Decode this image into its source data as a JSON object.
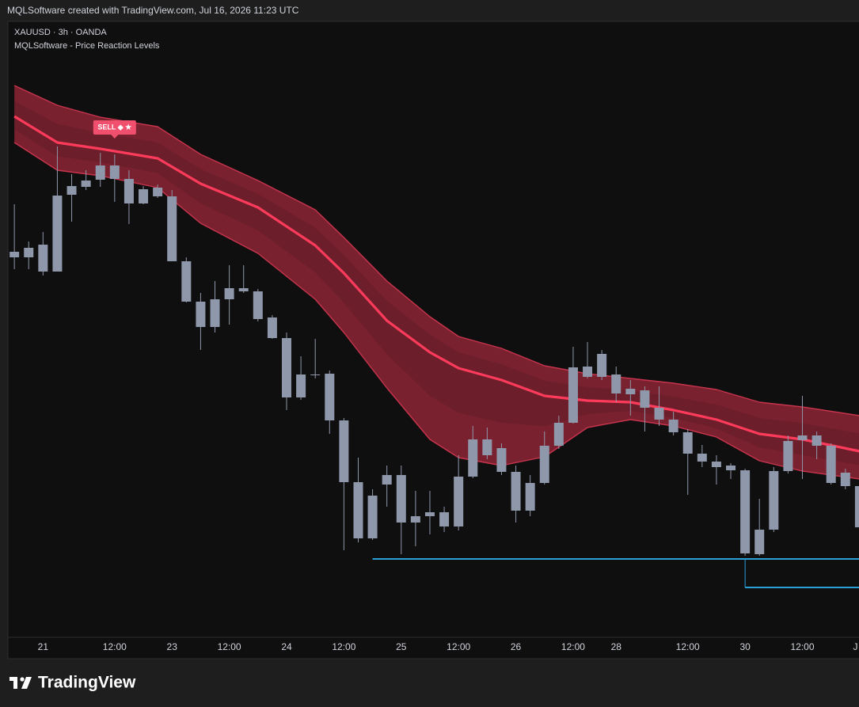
{
  "header": {
    "title": "MQLSoftware created with TradingView.com, Jul 16, 2026 11:23 UTC"
  },
  "footer": {
    "brand": "TradingView"
  },
  "chart_data": {
    "type": "candlestick",
    "symbol": "XAUUSD · 3h · OANDA",
    "indicator": "MQLSoftware - Price Reaction Levels",
    "color": "#8f97aa",
    "xlim": [
      -0.45,
      58.95
    ],
    "ylim": [
      0,
      778
    ],
    "xticks": [
      {
        "value": 2,
        "label": "21"
      },
      {
        "value": 7,
        "label": "12:00"
      },
      {
        "value": 11,
        "label": "23"
      },
      {
        "value": 15,
        "label": "12:00"
      },
      {
        "value": 19,
        "label": "24"
      },
      {
        "value": 23,
        "label": "12:00"
      },
      {
        "value": 27,
        "label": "25"
      },
      {
        "value": 31,
        "label": "12:00"
      },
      {
        "value": 35,
        "label": "26"
      },
      {
        "value": 39,
        "label": "12:00"
      },
      {
        "value": 42,
        "label": "28"
      },
      {
        "value": 47,
        "label": "12:00"
      },
      {
        "value": 51,
        "label": "30"
      },
      {
        "value": 55,
        "label": "12:00"
      },
      {
        "value": 58.7,
        "label": "J"
      }
    ],
    "candles": {
      "open": [
        480,
        480,
        496,
        462,
        559,
        569,
        578,
        596,
        579,
        548,
        568,
        557,
        475,
        424,
        392,
        427,
        441,
        437,
        404,
        378,
        303,
        332,
        333,
        274,
        196,
        125,
        193,
        205,
        145,
        153,
        158,
        140,
        203,
        250,
        239,
        209,
        160,
        195,
        242,
        271,
        329,
        358,
        332,
        314,
        312,
        290,
        275,
        259,
        232,
        222,
        217,
        211,
        105,
        136,
        210,
        249,
        255,
        242,
        208,
        191
      ],
      "high": [
        547,
        500,
        512,
        620,
        585,
        590,
        612,
        610,
        590,
        570,
        572,
        565,
        480,
        435,
        450,
        470,
        470,
        440,
        407,
        385,
        355,
        377,
        337,
        277,
        227,
        187,
        217,
        217,
        185,
        185,
        165,
        230,
        267,
        265,
        245,
        217,
        205,
        260,
        280,
        367,
        373,
        363,
        342,
        325,
        317,
        317,
        285,
        263,
        243,
        230,
        220,
        213,
        175,
        215,
        255,
        305,
        260,
        245,
        213,
        196
      ],
      "low": [
        465,
        465,
        457,
        462,
        525,
        565,
        569,
        550,
        522,
        547,
        555,
        475,
        423,
        363,
        385,
        395,
        435,
        399,
        377,
        287,
        300,
        327,
        257,
        110,
        120,
        123,
        165,
        105,
        115,
        130,
        133,
        135,
        201,
        225,
        205,
        145,
        153,
        193,
        238,
        270,
        327,
        325,
        297,
        280,
        260,
        267,
        255,
        180,
        215,
        193,
        200,
        103,
        103,
        133,
        207,
        200,
        225,
        193,
        187,
        135
      ],
      "close": [
        487,
        492,
        462,
        558,
        570,
        577,
        596,
        579,
        548,
        566,
        557,
        475,
        424,
        392,
        427,
        441,
        437,
        402,
        378,
        303,
        332,
        331,
        274,
        196,
        125,
        179,
        205,
        145,
        153,
        158,
        140,
        203,
        250,
        230,
        209,
        160,
        195,
        242,
        271,
        341,
        342,
        329,
        308,
        307,
        290,
        275,
        259,
        232,
        222,
        215,
        211,
        106,
        136,
        210,
        248,
        255,
        242,
        195,
        191,
        139
      ]
    },
    "bands": {
      "x": [
        0,
        3,
        6,
        10,
        13,
        17,
        21,
        23,
        26,
        29,
        31,
        34,
        37,
        40,
        43,
        46,
        49,
        52,
        55,
        59
      ],
      "upper": [
        697,
        672,
        657,
        645,
        610,
        577,
        540,
        505,
        450,
        405,
        380,
        365,
        343,
        333,
        327,
        321,
        313,
        297,
        291,
        280
      ],
      "middle": [
        658,
        625,
        617,
        605,
        573,
        543,
        495,
        460,
        400,
        360,
        340,
        325,
        305,
        299,
        297,
        287,
        275,
        257,
        250,
        235
      ],
      "lower": [
        625,
        590,
        583,
        568,
        523,
        485,
        427,
        385,
        315,
        250,
        227,
        217,
        228,
        265,
        275,
        267,
        253,
        223,
        210,
        200
      ],
      "fill_color": "#a3283d",
      "edge_color": "#c8344d",
      "line_color": "#ff3b5c"
    },
    "levels": [
      {
        "start": 25,
        "value": 99
      },
      {
        "start": 51,
        "value": 63
      }
    ],
    "level_color": "#2a9fd6",
    "annotations": [
      {
        "text": "SELL ◆ ★",
        "x": 7,
        "color": "#f0506e"
      }
    ]
  }
}
